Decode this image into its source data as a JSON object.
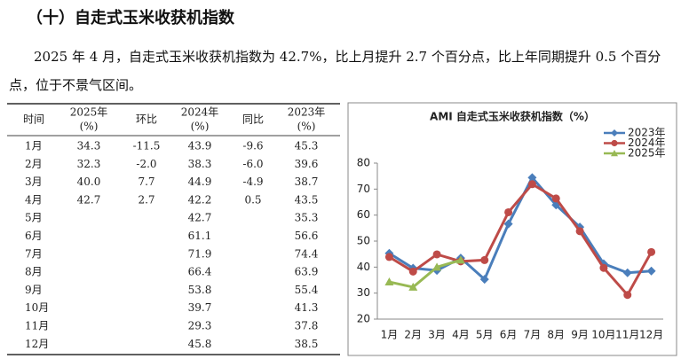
{
  "header": {
    "title": "（十）自走式玉米收获机指数"
  },
  "paragraph": "2025 年 4 月，自走式玉米收获机指数为 42.7%，比上月提升 2.7 个百分点，比上年同期提升 0.5 个百分点，位于不景气区间。",
  "table": {
    "headers": [
      [
        "时间"
      ],
      [
        "2025年",
        "(%)"
      ],
      [
        "环比"
      ],
      [
        "2024年",
        "(%)"
      ],
      [
        "同比"
      ],
      [
        "2023年",
        "(%)"
      ]
    ],
    "rows": [
      [
        "1月",
        "34.3",
        "-11.5",
        "43.9",
        "-9.6",
        "45.3"
      ],
      [
        "2月",
        "32.3",
        "-2.0",
        "38.3",
        "-6.0",
        "39.6"
      ],
      [
        "3月",
        "40.0",
        "7.7",
        "44.9",
        "-4.9",
        "38.7"
      ],
      [
        "4月",
        "42.7",
        "2.7",
        "42.2",
        "0.5",
        "43.5"
      ],
      [
        "5月",
        null,
        null,
        "42.7",
        null,
        "35.3"
      ],
      [
        "6月",
        null,
        null,
        "61.1",
        null,
        "56.6"
      ],
      [
        "7月",
        null,
        null,
        "71.9",
        null,
        "74.4"
      ],
      [
        "8月",
        null,
        null,
        "66.4",
        null,
        "63.9"
      ],
      [
        "9月",
        null,
        null,
        "53.8",
        null,
        "55.4"
      ],
      [
        "10月",
        null,
        null,
        "39.7",
        null,
        "41.3"
      ],
      [
        "11月",
        null,
        null,
        "29.3",
        null,
        "37.8"
      ],
      [
        "12月",
        null,
        null,
        "45.8",
        null,
        "38.5"
      ]
    ]
  },
  "chart_data": {
    "type": "line",
    "title": "AMI 自走式玉米收获机指数（%）",
    "categories": [
      "1月",
      "2月",
      "3月",
      "4月",
      "5月",
      "6月",
      "7月",
      "8月",
      "9月",
      "10月",
      "11月",
      "12月"
    ],
    "series": [
      {
        "name": "2023年",
        "color": "#4a7ebb",
        "marker": "diamond",
        "values": [
          45.3,
          39.6,
          38.7,
          43.5,
          35.3,
          56.6,
          74.4,
          63.9,
          55.4,
          41.3,
          37.8,
          38.5
        ]
      },
      {
        "name": "2024年",
        "color": "#be4b48",
        "marker": "circle",
        "values": [
          43.9,
          38.3,
          44.9,
          42.2,
          42.7,
          61.1,
          71.9,
          66.4,
          53.8,
          39.7,
          29.3,
          45.8
        ]
      },
      {
        "name": "2025年",
        "color": "#98b954",
        "marker": "triangle",
        "values": [
          34.3,
          32.3,
          40.0,
          42.7,
          null,
          null,
          null,
          null,
          null,
          null,
          null,
          null
        ]
      }
    ],
    "ylim": [
      20,
      80
    ],
    "yticks": [
      20,
      30,
      40,
      50,
      60,
      70,
      80
    ],
    "grid": false,
    "legend": "top-right"
  }
}
